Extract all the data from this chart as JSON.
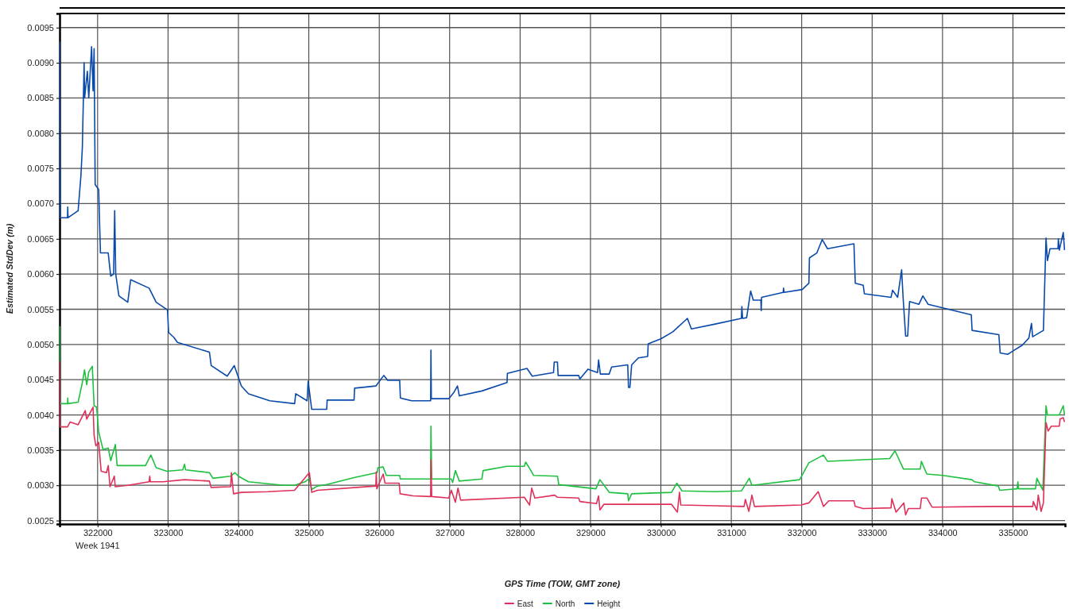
{
  "chart_data": {
    "type": "line",
    "xlabel": "GPS Time (TOW, GMT zone)",
    "ylabel": "Estimated StdDev (m)",
    "annotations": [
      "Week 1941"
    ],
    "xlim": [
      321460,
      335740
    ],
    "xticks": [
      322000,
      323000,
      324000,
      325000,
      326000,
      327000,
      328000,
      329000,
      330000,
      331000,
      332000,
      333000,
      334000,
      335000
    ],
    "ylim": [
      0.00245,
      0.0097
    ],
    "yticks": [
      {
        "value": 0.0025,
        "label": "0.0025"
      },
      {
        "value": 0.003,
        "label": "0.0030"
      },
      {
        "value": 0.0035,
        "label": "0.0035"
      },
      {
        "value": 0.004,
        "label": "0.0040"
      },
      {
        "value": 0.0045,
        "label": "0.0045"
      },
      {
        "value": 0.005,
        "label": "0.0050"
      },
      {
        "value": 0.0055,
        "label": "0.0055"
      },
      {
        "value": 0.006,
        "label": "0.0060"
      },
      {
        "value": 0.0065,
        "label": "0.0065"
      },
      {
        "value": 0.007,
        "label": "0.0070"
      },
      {
        "value": 0.0075,
        "label": "0.0075"
      },
      {
        "value": 0.008,
        "label": "0.0080"
      },
      {
        "value": 0.0085,
        "label": "0.0085"
      },
      {
        "value": 0.009,
        "label": "0.0090"
      },
      {
        "value": 0.0095,
        "label": "0.0095"
      }
    ],
    "grid": true,
    "legend": "bottom",
    "marker": "none",
    "line_style": "solid",
    "series": [
      {
        "name": "East",
        "color": "#e0305a",
        "x": [
          321462,
          321466,
          321572,
          321610,
          321723,
          321783,
          321824,
          321845,
          321935,
          321950,
          321975,
          322015,
          322050,
          322126,
          322151,
          322176,
          322237,
          322250,
          322428,
          322731,
          322740,
          322750,
          322932,
          323234,
          323587,
          323612,
          323889,
          323900,
          323930,
          324040,
          324418,
          324796,
          325008,
          325040,
          325122,
          325951,
          325958,
          325965,
          326056,
          326082,
          326282,
          326297,
          326478,
          326730,
          326734,
          326745,
          326987,
          327024,
          327081,
          327118,
          327156,
          328060,
          328135,
          328165,
          328210,
          328493,
          328531,
          328832,
          328850,
          329085,
          329115,
          329134,
          329190,
          330151,
          330234,
          330264,
          330283,
          330772,
          331181,
          331200,
          331249,
          331293,
          331330,
          331990,
          332102,
          332234,
          332309,
          332385,
          332742,
          332761,
          332874,
          333269,
          333280,
          333340,
          333450,
          333476,
          333514,
          333683,
          333702,
          333777,
          333852,
          334680,
          335282,
          335290,
          335339,
          335360,
          335400,
          335433,
          335470,
          335500,
          335545,
          335659,
          335670,
          335715,
          335733
        ],
        "values": [
          0.00476,
          0.00383,
          0.00383,
          0.0039,
          0.00386,
          0.00398,
          0.00406,
          0.00394,
          0.00411,
          0.00371,
          0.00356,
          0.00361,
          0.0032,
          0.00318,
          0.00328,
          0.00298,
          0.00313,
          0.00298,
          0.003,
          0.00305,
          0.00313,
          0.00305,
          0.00305,
          0.00308,
          0.00306,
          0.00297,
          0.00298,
          0.00318,
          0.00288,
          0.0029,
          0.00291,
          0.00293,
          0.00318,
          0.0029,
          0.00293,
          0.00299,
          0.00319,
          0.00295,
          0.00316,
          0.00303,
          0.00303,
          0.00288,
          0.00285,
          0.00284,
          0.00336,
          0.00284,
          0.00282,
          0.00293,
          0.00276,
          0.00296,
          0.00279,
          0.00283,
          0.00272,
          0.00296,
          0.00282,
          0.00286,
          0.00283,
          0.00282,
          0.00277,
          0.00274,
          0.00285,
          0.00265,
          0.00273,
          0.00273,
          0.00262,
          0.0029,
          0.00272,
          0.00271,
          0.0027,
          0.0028,
          0.00263,
          0.00286,
          0.0027,
          0.00272,
          0.00275,
          0.00291,
          0.0027,
          0.00278,
          0.00278,
          0.0027,
          0.00267,
          0.00268,
          0.00281,
          0.00262,
          0.00275,
          0.00258,
          0.00267,
          0.00267,
          0.00282,
          0.00282,
          0.00269,
          0.0027,
          0.0027,
          0.00277,
          0.00265,
          0.00286,
          0.00263,
          0.00275,
          0.00389,
          0.00377,
          0.00384,
          0.00384,
          0.00394,
          0.00396,
          0.0039
        ]
      },
      {
        "name": "North",
        "color": "#1ec040",
        "x": [
          321462,
          321466,
          321572,
          321575,
          321580,
          321723,
          321783,
          321814,
          321845,
          321874,
          321924,
          321950,
          321985,
          322015,
          322076,
          322151,
          322186,
          322252,
          322277,
          322680,
          322756,
          322831,
          322982,
          323209,
          323234,
          323250,
          323587,
          323637,
          323889,
          323950,
          324000,
          324141,
          324645,
          324796,
          324947,
          325008,
          325040,
          325122,
          325254,
          325642,
          325970,
          325980,
          326056,
          326101,
          326290,
          326300,
          326730,
          326734,
          326745,
          327024,
          327043,
          327081,
          327137,
          327458,
          327476,
          327815,
          328060,
          328079,
          328154,
          328192,
          328531,
          328550,
          329077,
          329134,
          329266,
          329529,
          329540,
          329585,
          330151,
          330226,
          330300,
          330772,
          331143,
          331256,
          331293,
          331971,
          332102,
          332309,
          332367,
          333250,
          333325,
          333446,
          333683,
          333700,
          333777,
          334003,
          334417,
          334455,
          334793,
          334812,
          335060,
          335070,
          335080,
          335320,
          335340,
          335425,
          335470,
          335490,
          335659,
          335715,
          335733
        ],
        "values": [
          0.00526,
          0.00416,
          0.00416,
          0.00424,
          0.00416,
          0.00418,
          0.00446,
          0.00464,
          0.00443,
          0.00461,
          0.00469,
          0.00413,
          0.00411,
          0.00376,
          0.00351,
          0.00353,
          0.00335,
          0.00358,
          0.00328,
          0.00328,
          0.00343,
          0.00325,
          0.0032,
          0.00322,
          0.0033,
          0.00322,
          0.00318,
          0.0031,
          0.00313,
          0.00318,
          0.00313,
          0.00305,
          0.003,
          0.003,
          0.00305,
          0.0031,
          0.00294,
          0.00299,
          0.00301,
          0.00311,
          0.00318,
          0.00325,
          0.00326,
          0.00314,
          0.00314,
          0.00309,
          0.00309,
          0.00384,
          0.00309,
          0.00309,
          0.00304,
          0.00321,
          0.00306,
          0.00309,
          0.00321,
          0.00327,
          0.00327,
          0.00333,
          0.00321,
          0.00314,
          0.00313,
          0.00301,
          0.00295,
          0.00308,
          0.0029,
          0.00288,
          0.00278,
          0.00288,
          0.0029,
          0.00303,
          0.00292,
          0.00291,
          0.00292,
          0.0031,
          0.003,
          0.00308,
          0.00332,
          0.00343,
          0.00334,
          0.00338,
          0.00349,
          0.00323,
          0.00323,
          0.00334,
          0.00316,
          0.00314,
          0.00308,
          0.00305,
          0.00299,
          0.00293,
          0.00295,
          0.00305,
          0.00295,
          0.00295,
          0.0031,
          0.00293,
          0.00413,
          0.004,
          0.004,
          0.00413,
          0.004
        ]
      },
      {
        "name": "Height",
        "color": "#0a4aaa",
        "x": [
          321462,
          321465,
          321470,
          321572,
          321575,
          321580,
          321723,
          321763,
          321783,
          321808,
          321815,
          321854,
          321874,
          321914,
          321935,
          321950,
          321965,
          322015,
          322040,
          322150,
          322186,
          322227,
          322242,
          322257,
          322302,
          322428,
          322469,
          322731,
          322831,
          322993,
          323008,
          323084,
          323134,
          323588,
          323613,
          323840,
          323941,
          324042,
          324143,
          324445,
          324798,
          324813,
          324975,
          324990,
          325040,
          325254,
          325260,
          325642,
          325650,
          325951,
          326064,
          326120,
          326290,
          326300,
          326460,
          326730,
          326734,
          326740,
          326987,
          327060,
          327111,
          327137,
          327458,
          327815,
          327820,
          328098,
          328173,
          328475,
          328485,
          328531,
          328540,
          328832,
          328850,
          328964,
          329100,
          329115,
          329140,
          329266,
          329300,
          329529,
          329540,
          329560,
          329585,
          329680,
          329812,
          329820,
          330000,
          330170,
          330377,
          330433,
          330772,
          331143,
          331150,
          331160,
          331218,
          331275,
          331312,
          331420,
          331425,
          331430,
          331737,
          331742,
          331750,
          332008,
          332102,
          332110,
          332215,
          332291,
          332367,
          332742,
          332761,
          332874,
          332890,
          333269,
          333290,
          333363,
          333419,
          333440,
          333476,
          333505,
          333532,
          333664,
          333721,
          333796,
          334003,
          334409,
          334420,
          334800,
          334819,
          334925,
          335132,
          335226,
          335264,
          335280,
          335433,
          335470,
          335490,
          335527,
          335640,
          335645,
          335659,
          335715,
          335733
        ],
        "values": [
          0.0093,
          0.0082,
          0.0068,
          0.0068,
          0.00695,
          0.0068,
          0.0069,
          0.0074,
          0.0078,
          0.009,
          0.0085,
          0.00888,
          0.0085,
          0.00923,
          0.0086,
          0.0092,
          0.00727,
          0.0072,
          0.0063,
          0.0063,
          0.00597,
          0.006,
          0.0069,
          0.006,
          0.00569,
          0.0056,
          0.00592,
          0.0058,
          0.0056,
          0.00549,
          0.00517,
          0.0051,
          0.00503,
          0.00489,
          0.0047,
          0.00455,
          0.0047,
          0.00441,
          0.0043,
          0.0042,
          0.00416,
          0.0043,
          0.0042,
          0.00448,
          0.00408,
          0.00408,
          0.00421,
          0.00421,
          0.00438,
          0.00441,
          0.00456,
          0.00449,
          0.00449,
          0.00424,
          0.0042,
          0.0042,
          0.00492,
          0.00423,
          0.00423,
          0.00432,
          0.00441,
          0.00427,
          0.00434,
          0.00446,
          0.00459,
          0.00466,
          0.00455,
          0.0046,
          0.00475,
          0.00475,
          0.00456,
          0.00456,
          0.00451,
          0.00465,
          0.0046,
          0.00478,
          0.00458,
          0.00458,
          0.00468,
          0.00471,
          0.00439,
          0.00439,
          0.00471,
          0.00481,
          0.00483,
          0.00501,
          0.00508,
          0.00518,
          0.00537,
          0.00522,
          0.00529,
          0.00537,
          0.00554,
          0.00537,
          0.00538,
          0.00576,
          0.00563,
          0.00563,
          0.00548,
          0.00567,
          0.00574,
          0.0058,
          0.00574,
          0.00578,
          0.00587,
          0.00623,
          0.0063,
          0.00649,
          0.00636,
          0.00643,
          0.00587,
          0.00584,
          0.00572,
          0.00567,
          0.00577,
          0.00567,
          0.00606,
          0.00567,
          0.00512,
          0.00512,
          0.00561,
          0.00557,
          0.00569,
          0.00557,
          0.00552,
          0.00542,
          0.0052,
          0.00514,
          0.00488,
          0.00486,
          0.00499,
          0.00509,
          0.0053,
          0.00511,
          0.0052,
          0.00651,
          0.00619,
          0.00636,
          0.00636,
          0.0065,
          0.00634,
          0.00659,
          0.00634
        ]
      }
    ]
  }
}
